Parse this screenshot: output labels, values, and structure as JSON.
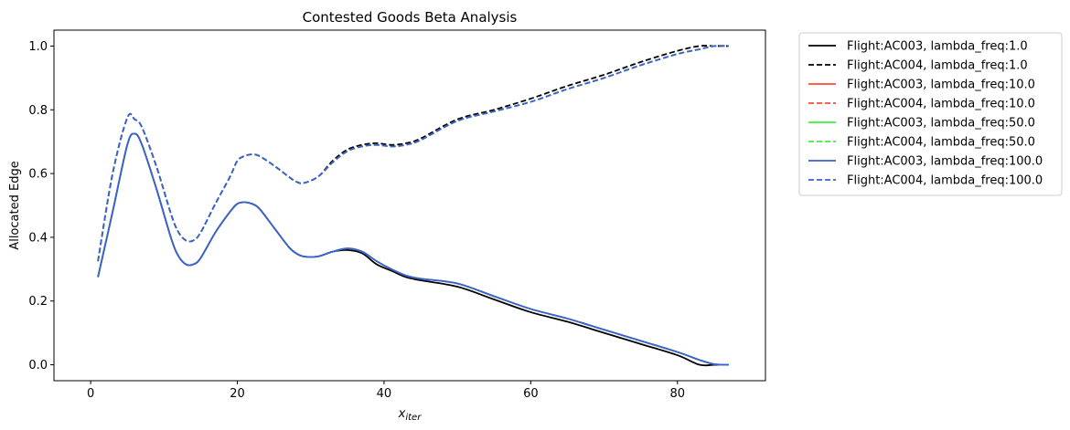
{
  "chart_data": {
    "type": "line",
    "title": "Contested Goods Beta Analysis",
    "xlabel_base": "x",
    "xlabel_sub": "iter",
    "ylabel": "Allocated Edge",
    "xlim": [
      -5,
      92
    ],
    "ylim": [
      -0.05,
      1.05
    ],
    "xticks": [
      0,
      20,
      40,
      60,
      80
    ],
    "xtick_labels": [
      "0",
      "20",
      "40",
      "60",
      "80"
    ],
    "yticks": [
      0.0,
      0.2,
      0.4,
      0.6,
      0.8,
      1.0
    ],
    "ytick_labels": [
      "0.0",
      "0.2",
      "0.4",
      "0.6",
      "0.8",
      "1.0"
    ],
    "grid": false,
    "legend_placement": "outside upper right",
    "x": [
      1,
      3,
      5,
      6,
      7,
      9,
      11,
      12,
      13,
      14,
      15,
      17,
      19,
      20,
      21,
      22,
      23,
      25,
      27,
      28,
      29,
      31,
      33,
      35,
      37,
      39,
      41,
      43,
      45,
      50,
      55,
      60,
      65,
      70,
      75,
      80,
      83,
      85,
      87
    ],
    "series": [
      {
        "name": "Flight:AC003, lambda_freq:1.0",
        "color": "#000000",
        "dash": "solid",
        "values": [
          0.275,
          0.48,
          0.69,
          0.725,
          0.69,
          0.55,
          0.395,
          0.34,
          0.315,
          0.315,
          0.335,
          0.415,
          0.48,
          0.505,
          0.51,
          0.505,
          0.49,
          0.43,
          0.37,
          0.35,
          0.34,
          0.34,
          0.355,
          0.36,
          0.35,
          0.315,
          0.295,
          0.275,
          0.265,
          0.245,
          0.205,
          0.165,
          0.135,
          0.1,
          0.065,
          0.03,
          0.0,
          0.0,
          0.0
        ]
      },
      {
        "name": "Flight:AC004, lambda_freq:1.0",
        "color": "#000000",
        "dash": "dashed",
        "values": [
          0.325,
          0.6,
          0.775,
          0.77,
          0.745,
          0.62,
          0.47,
          0.415,
          0.39,
          0.39,
          0.415,
          0.505,
          0.59,
          0.64,
          0.655,
          0.66,
          0.655,
          0.625,
          0.59,
          0.575,
          0.57,
          0.59,
          0.64,
          0.675,
          0.69,
          0.695,
          0.69,
          0.695,
          0.71,
          0.77,
          0.8,
          0.835,
          0.875,
          0.91,
          0.95,
          0.985,
          1.0,
          1.0,
          1.0
        ]
      },
      {
        "name": "Flight:AC003, lambda_freq:10.0",
        "color": "#ff4b2f",
        "dash": "solid",
        "values": [
          0.275,
          0.48,
          0.69,
          0.725,
          0.69,
          0.55,
          0.395,
          0.34,
          0.315,
          0.315,
          0.335,
          0.415,
          0.48,
          0.505,
          0.51,
          0.505,
          0.49,
          0.43,
          0.37,
          0.35,
          0.34,
          0.34,
          0.355,
          0.365,
          0.355,
          0.325,
          0.3,
          0.28,
          0.27,
          0.255,
          0.215,
          0.175,
          0.145,
          0.11,
          0.075,
          0.04,
          0.015,
          0.002,
          0.0
        ]
      },
      {
        "name": "Flight:AC004, lambda_freq:10.0",
        "color": "#ff4b2f",
        "dash": "dashed",
        "values": [
          0.325,
          0.6,
          0.775,
          0.77,
          0.745,
          0.62,
          0.47,
          0.415,
          0.39,
          0.39,
          0.415,
          0.505,
          0.59,
          0.64,
          0.655,
          0.66,
          0.655,
          0.625,
          0.59,
          0.575,
          0.57,
          0.59,
          0.635,
          0.67,
          0.685,
          0.69,
          0.685,
          0.69,
          0.705,
          0.765,
          0.795,
          0.825,
          0.865,
          0.9,
          0.94,
          0.975,
          0.99,
          1.0,
          1.0
        ]
      },
      {
        "name": "Flight:AC003, lambda_freq:50.0",
        "color": "#3cf03c",
        "dash": "solid",
        "values": [
          0.275,
          0.48,
          0.69,
          0.725,
          0.69,
          0.55,
          0.395,
          0.34,
          0.315,
          0.315,
          0.335,
          0.415,
          0.48,
          0.505,
          0.51,
          0.505,
          0.49,
          0.43,
          0.37,
          0.35,
          0.34,
          0.34,
          0.355,
          0.365,
          0.355,
          0.325,
          0.3,
          0.28,
          0.27,
          0.255,
          0.215,
          0.175,
          0.145,
          0.11,
          0.075,
          0.04,
          0.015,
          0.002,
          0.0
        ]
      },
      {
        "name": "Flight:AC004, lambda_freq:50.0",
        "color": "#3cf03c",
        "dash": "dashed",
        "values": [
          0.325,
          0.6,
          0.775,
          0.77,
          0.745,
          0.62,
          0.47,
          0.415,
          0.39,
          0.39,
          0.415,
          0.505,
          0.59,
          0.64,
          0.655,
          0.66,
          0.655,
          0.625,
          0.59,
          0.575,
          0.57,
          0.59,
          0.635,
          0.67,
          0.685,
          0.69,
          0.685,
          0.69,
          0.705,
          0.765,
          0.795,
          0.825,
          0.865,
          0.9,
          0.94,
          0.975,
          0.99,
          1.0,
          1.0
        ]
      },
      {
        "name": "Flight:AC003, lambda_freq:100.0",
        "color": "#3a5fd9",
        "dash": "solid",
        "values": [
          0.275,
          0.48,
          0.69,
          0.725,
          0.69,
          0.55,
          0.395,
          0.34,
          0.315,
          0.315,
          0.335,
          0.415,
          0.48,
          0.505,
          0.51,
          0.505,
          0.49,
          0.43,
          0.37,
          0.35,
          0.34,
          0.34,
          0.355,
          0.365,
          0.355,
          0.325,
          0.3,
          0.28,
          0.27,
          0.255,
          0.215,
          0.175,
          0.145,
          0.11,
          0.075,
          0.04,
          0.015,
          0.002,
          0.0
        ]
      },
      {
        "name": "Flight:AC004, lambda_freq:100.0",
        "color": "#3a5fd9",
        "dash": "dashed",
        "values": [
          0.325,
          0.6,
          0.775,
          0.77,
          0.745,
          0.62,
          0.47,
          0.415,
          0.39,
          0.39,
          0.415,
          0.505,
          0.59,
          0.64,
          0.655,
          0.66,
          0.655,
          0.625,
          0.59,
          0.575,
          0.57,
          0.59,
          0.635,
          0.67,
          0.685,
          0.69,
          0.685,
          0.69,
          0.705,
          0.765,
          0.795,
          0.825,
          0.865,
          0.9,
          0.94,
          0.975,
          0.99,
          1.0,
          1.0
        ]
      }
    ]
  }
}
